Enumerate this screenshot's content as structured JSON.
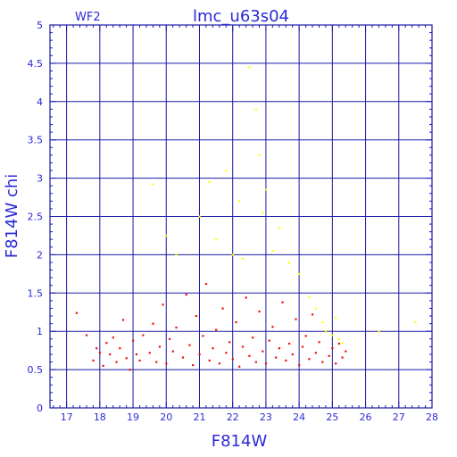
{
  "colors": {
    "axis": "#1a1aa8",
    "text": "#2a2ad6",
    "point_primary": "#ee1111",
    "point_secondary": "#ffff00"
  },
  "chart_data": {
    "type": "scatter",
    "panel_label": "WF2",
    "title": "lmc_u63s04",
    "xlabel": "F814W",
    "ylabel": "F814W chi",
    "xlim": [
      16.5,
      28
    ],
    "ylim": [
      0,
      5
    ],
    "xticks": [
      "17",
      "18",
      "19",
      "20",
      "21",
      "22",
      "23",
      "24",
      "25",
      "26",
      "27",
      "28"
    ],
    "yticks": [
      "0",
      "0.5",
      "1",
      "1.5",
      "2",
      "2.5",
      "3",
      "3.5",
      "4",
      "4.5",
      "5"
    ],
    "grid": true,
    "series": [
      {
        "color": "#ee1111",
        "points": [
          [
            17.3,
            1.24
          ],
          [
            17.6,
            0.95
          ],
          [
            17.8,
            0.62
          ],
          [
            17.9,
            0.78
          ],
          [
            18.0,
            0.72
          ],
          [
            18.1,
            0.55
          ],
          [
            18.2,
            0.85
          ],
          [
            18.3,
            0.7
          ],
          [
            18.4,
            0.92
          ],
          [
            18.5,
            0.6
          ],
          [
            18.6,
            0.78
          ],
          [
            18.7,
            1.15
          ],
          [
            18.8,
            0.65
          ],
          [
            18.9,
            0.5
          ],
          [
            19.0,
            0.88
          ],
          [
            19.1,
            0.7
          ],
          [
            19.2,
            0.62
          ],
          [
            19.3,
            0.95
          ],
          [
            19.5,
            0.72
          ],
          [
            19.6,
            1.1
          ],
          [
            19.7,
            0.6
          ],
          [
            19.8,
            0.8
          ],
          [
            19.9,
            1.35
          ],
          [
            20.0,
            0.58
          ],
          [
            20.1,
            0.9
          ],
          [
            20.2,
            0.74
          ],
          [
            20.3,
            1.05
          ],
          [
            20.5,
            0.66
          ],
          [
            20.6,
            1.48
          ],
          [
            20.7,
            0.82
          ],
          [
            20.8,
            0.56
          ],
          [
            20.9,
            1.2
          ],
          [
            21.0,
            0.7
          ],
          [
            21.1,
            0.94
          ],
          [
            21.2,
            1.62
          ],
          [
            21.3,
            0.62
          ],
          [
            21.4,
            0.78
          ],
          [
            21.5,
            1.02
          ],
          [
            21.6,
            0.58
          ],
          [
            21.7,
            1.3
          ],
          [
            21.8,
            0.72
          ],
          [
            21.9,
            0.86
          ],
          [
            22.0,
            0.64
          ],
          [
            22.1,
            1.12
          ],
          [
            22.2,
            0.54
          ],
          [
            22.3,
            0.8
          ],
          [
            22.4,
            1.44
          ],
          [
            22.5,
            0.68
          ],
          [
            22.6,
            0.92
          ],
          [
            22.7,
            0.6
          ],
          [
            22.8,
            1.26
          ],
          [
            22.9,
            0.74
          ],
          [
            23.0,
            0.58
          ],
          [
            23.1,
            0.88
          ],
          [
            23.2,
            1.06
          ],
          [
            23.3,
            0.66
          ],
          [
            23.4,
            0.78
          ],
          [
            23.5,
            1.38
          ],
          [
            23.6,
            0.62
          ],
          [
            23.7,
            0.84
          ],
          [
            23.8,
            0.7
          ],
          [
            23.9,
            1.16
          ],
          [
            24.0,
            0.56
          ],
          [
            24.1,
            0.8
          ],
          [
            24.2,
            0.94
          ],
          [
            24.3,
            0.64
          ],
          [
            24.4,
            1.22
          ],
          [
            24.5,
            0.72
          ],
          [
            24.6,
            0.86
          ],
          [
            24.7,
            0.6
          ],
          [
            24.8,
            1.0
          ],
          [
            24.9,
            0.68
          ],
          [
            25.0,
            0.78
          ],
          [
            25.1,
            0.58
          ],
          [
            25.2,
            0.84
          ],
          [
            25.3,
            0.66
          ],
          [
            25.4,
            0.74
          ]
        ]
      },
      {
        "color": "#ffff00",
        "points": [
          [
            19.6,
            2.92
          ],
          [
            20.0,
            2.25
          ],
          [
            20.3,
            2.0
          ],
          [
            21.0,
            2.5
          ],
          [
            21.3,
            2.95
          ],
          [
            21.5,
            2.2
          ],
          [
            21.8,
            3.1
          ],
          [
            22.0,
            2.0
          ],
          [
            22.2,
            2.7
          ],
          [
            22.3,
            1.95
          ],
          [
            22.5,
            4.45
          ],
          [
            22.7,
            3.9
          ],
          [
            22.8,
            3.3
          ],
          [
            22.9,
            2.55
          ],
          [
            23.0,
            2.85
          ],
          [
            23.2,
            2.05
          ],
          [
            23.4,
            2.35
          ],
          [
            23.7,
            1.9
          ],
          [
            24.0,
            1.75
          ],
          [
            24.3,
            1.45
          ],
          [
            24.5,
            1.3
          ],
          [
            24.7,
            1.12
          ],
          [
            24.8,
            1.0
          ],
          [
            25.0,
            0.95
          ],
          [
            25.1,
            1.18
          ],
          [
            25.2,
            0.9
          ],
          [
            25.3,
            0.85
          ],
          [
            26.4,
            1.0
          ],
          [
            27.5,
            1.12
          ]
        ]
      }
    ]
  }
}
